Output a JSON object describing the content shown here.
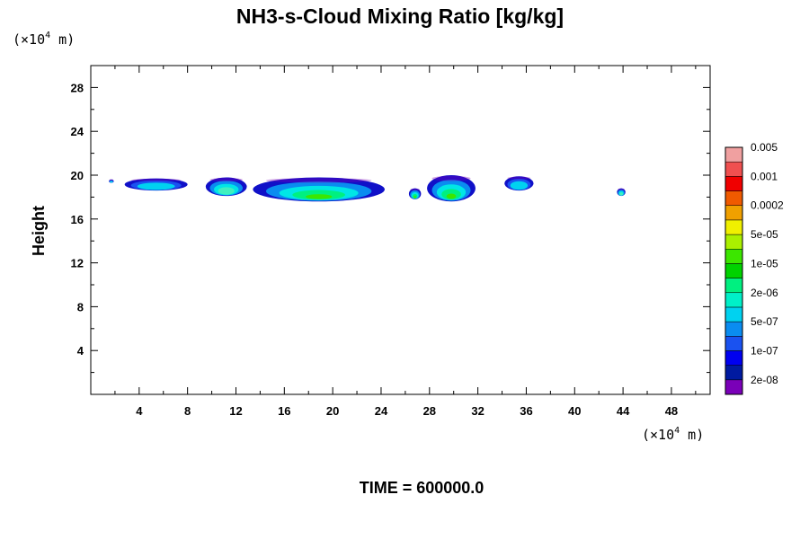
{
  "chart_data": {
    "type": "contour",
    "title": "NH3-s-Cloud Mixing Ratio [kg/kg]",
    "ylabel": "Height",
    "x_unit": {
      "prefix": "(×10",
      "exp": "4",
      "suffix": " m)"
    },
    "y_unit": {
      "prefix": "(×10",
      "exp": "4",
      "suffix": " m)"
    },
    "xlim": [
      0,
      51.2
    ],
    "ylim": [
      0,
      30
    ],
    "x_ticks": [
      4,
      8,
      12,
      16,
      20,
      24,
      28,
      32,
      36,
      40,
      44,
      48
    ],
    "y_ticks": [
      4,
      8,
      12,
      16,
      20,
      24,
      28
    ],
    "time_label": "TIME = 600000.0",
    "colorbar": {
      "colors": [
        "#7a00b8",
        "#001aa0",
        "#0000f0",
        "#1a52f0",
        "#0a8cf0",
        "#00d2f0",
        "#00f0c8",
        "#00f080",
        "#00d200",
        "#3ce600",
        "#aaf000",
        "#f0f000",
        "#f0a000",
        "#f05a00",
        "#f00000",
        "#f05050",
        "#f0a0a0"
      ],
      "labels": [
        "2e-08",
        "1e-07",
        "5e-07",
        "2e-06",
        "1e-05",
        "5e-05",
        "0.0002",
        "0.001",
        "0.005"
      ]
    },
    "cloud_patches": [
      {
        "x": [
          1.5,
          1.9
        ],
        "y": [
          19.3,
          19.6
        ],
        "level": "low"
      },
      {
        "x": [
          2.8,
          8.0
        ],
        "y": [
          18.6,
          19.7
        ],
        "level": "low"
      },
      {
        "x": [
          9.5,
          12.9
        ],
        "y": [
          18.1,
          19.8
        ],
        "level": "mid"
      },
      {
        "x": [
          13.4,
          24.3
        ],
        "y": [
          17.6,
          19.8
        ],
        "level": "high"
      },
      {
        "x": [
          26.3,
          27.3
        ],
        "y": [
          17.8,
          18.8
        ],
        "level": "high"
      },
      {
        "x": [
          27.8,
          31.8
        ],
        "y": [
          17.6,
          20.0
        ],
        "level": "high"
      },
      {
        "x": [
          34.2,
          36.6
        ],
        "y": [
          18.6,
          19.9
        ],
        "level": "low"
      },
      {
        "x": [
          43.5,
          44.2
        ],
        "y": [
          18.1,
          18.8
        ],
        "level": "mid"
      }
    ]
  }
}
